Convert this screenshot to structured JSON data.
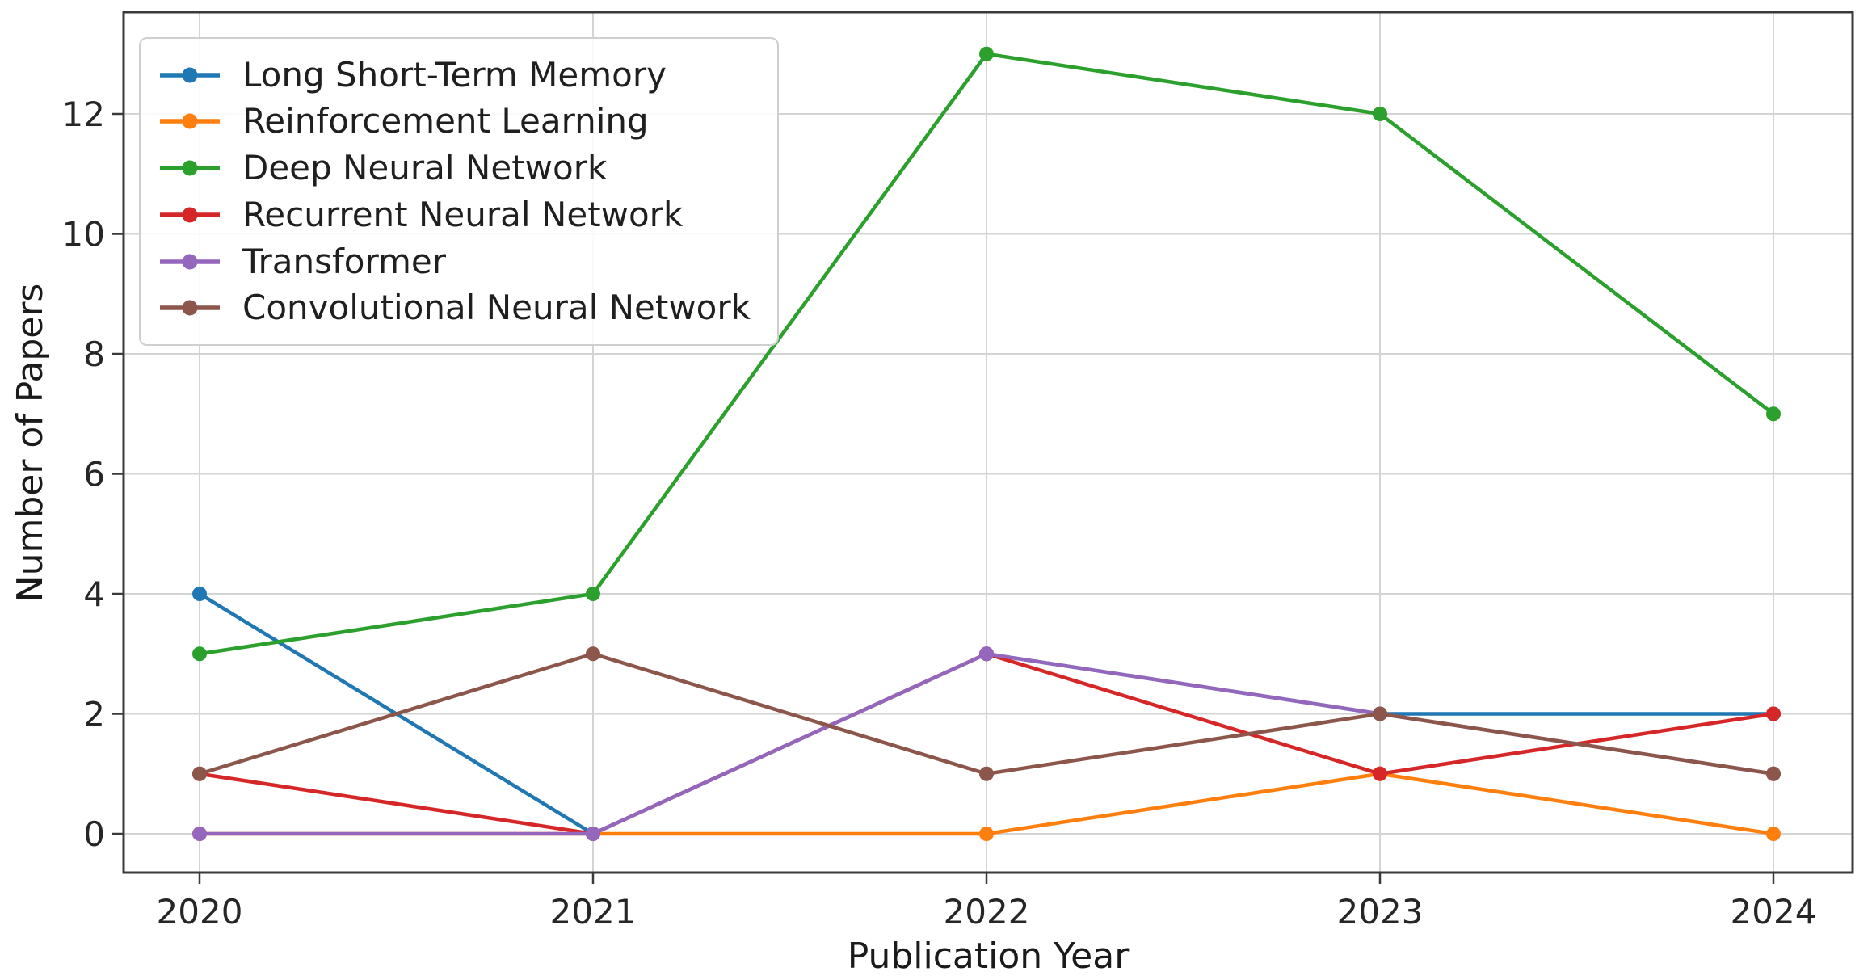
{
  "chart_data": {
    "type": "line",
    "title": "",
    "xlabel": "Publication Year",
    "ylabel": "Number of Papers",
    "x": [
      2020,
      2021,
      2022,
      2023,
      2024
    ],
    "yticks": [
      0,
      2,
      4,
      6,
      8,
      10,
      12
    ],
    "xlim": [
      2019.8,
      2024.2
    ],
    "ylim": [
      -0.65,
      13.7
    ],
    "grid": true,
    "marker": "circle",
    "legend_position": "upper left",
    "series": [
      {
        "name": "Long Short-Term Memory",
        "color": "#1f77b4",
        "values": [
          4,
          0,
          3,
          2,
          2
        ]
      },
      {
        "name": "Reinforcement Learning",
        "color": "#ff7f0e",
        "values": [
          0,
          0,
          0,
          1,
          0
        ]
      },
      {
        "name": "Deep Neural Network",
        "color": "#2ca02c",
        "values": [
          3,
          4,
          13,
          12,
          7
        ]
      },
      {
        "name": "Recurrent Neural Network",
        "color": "#d62728",
        "values": [
          1,
          0,
          3,
          1,
          2
        ]
      },
      {
        "name": "Transformer",
        "color": "#9467bd",
        "values": [
          0,
          0,
          3,
          2,
          1
        ]
      },
      {
        "name": "Convolutional Neural Network",
        "color": "#8c564b",
        "values": [
          1,
          3,
          1,
          2,
          1
        ]
      }
    ],
    "style_colors": {
      "grid": "#d4d4d4",
      "spine": "#3a3a3a",
      "tick_text": "#262626",
      "background": "#ffffff"
    }
  }
}
